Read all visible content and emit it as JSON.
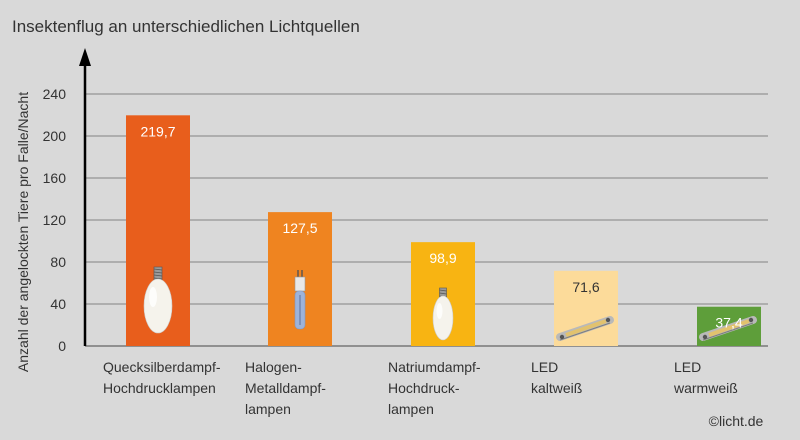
{
  "chart_data": {
    "type": "bar",
    "title": "Insektenflug an unterschiedlichen Lichtquellen",
    "ylabel": "Anzahl der angelockten Tiere pro Falle/Nacht",
    "xlabel": "",
    "ylim": [
      0,
      240
    ],
    "yticks": [
      "0",
      "40",
      "80",
      "120",
      "160",
      "200",
      "240"
    ],
    "grid": true,
    "categories": [
      [
        "Quecksilberdampf-",
        "Hochdrucklampen"
      ],
      [
        "Halogen-",
        "Metalldampf-",
        "lampen"
      ],
      [
        "Natriumdampf-",
        "Hochdruck-",
        "lampen"
      ],
      [
        "LED",
        "kaltweiß"
      ],
      [
        "LED",
        "warmweiß"
      ]
    ],
    "values": [
      219.7,
      127.5,
      98.9,
      71.6,
      37.4
    ],
    "value_labels": [
      "219,7",
      "127,5",
      "98,9",
      "71,6",
      "37,4"
    ],
    "colors": [
      "#e85e1c",
      "#ef8420",
      "#f8b412",
      "#fcdb9a",
      "#5e9e3a"
    ],
    "label_colors": [
      "#ffffff",
      "#ffffff",
      "#ffffff",
      "#333333",
      "#ffffff"
    ],
    "icons": [
      "mercury-lamp-icon",
      "halogen-metal-lamp-icon",
      "sodium-lamp-icon",
      "led-strip-icon",
      "led-strip-icon"
    ]
  },
  "copyright": "©licht.de"
}
